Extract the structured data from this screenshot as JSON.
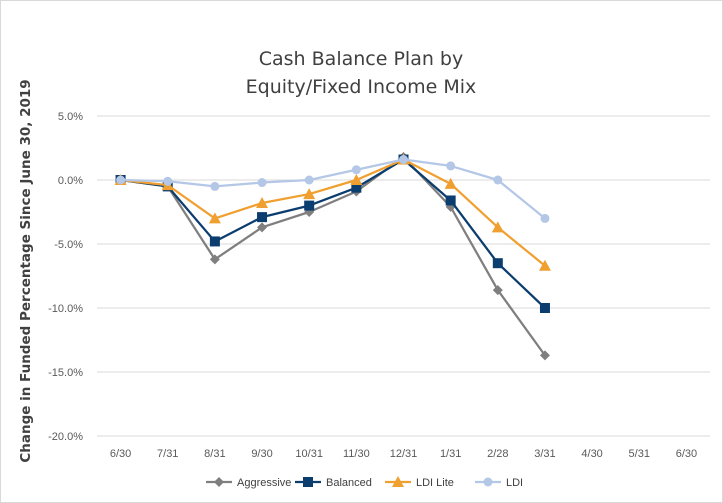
{
  "chart_data": {
    "type": "line",
    "title_lines": [
      "Cash Balance Plan by",
      "Equity/Fixed Income Mix"
    ],
    "xlabel": "",
    "ylabel": "Change in Funded Percentage Since June 30, 2019",
    "categories": [
      "6/30",
      "7/31",
      "8/31",
      "9/30",
      "10/31",
      "11/30",
      "12/31",
      "1/31",
      "2/28",
      "3/31",
      "4/30",
      "5/31",
      "6/30"
    ],
    "ylim": [
      -20.0,
      5.0
    ],
    "yticks": [
      5.0,
      0.0,
      -5.0,
      -10.0,
      -15.0,
      -20.0
    ],
    "ytick_labels": [
      "5.0%",
      "0.0%",
      "-5.0%",
      "-10.0%",
      "-15.0%",
      "-20.0%"
    ],
    "grid": true,
    "legend_position": "bottom",
    "series": [
      {
        "name": "Aggressive",
        "color": "#7f7f7f",
        "marker": "diamond",
        "values": [
          0.0,
          -0.5,
          -6.2,
          -3.7,
          -2.5,
          -0.9,
          1.8,
          -2.1,
          -8.6,
          -13.7,
          null,
          null,
          null
        ]
      },
      {
        "name": "Balanced",
        "color": "#0b3d6e",
        "marker": "square",
        "values": [
          0.0,
          -0.5,
          -4.8,
          -2.9,
          -2.0,
          -0.6,
          1.6,
          -1.6,
          -6.5,
          -10.0,
          null,
          null,
          null
        ]
      },
      {
        "name": "LDI Lite",
        "color": "#f0a030",
        "marker": "triangle",
        "values": [
          0.0,
          -0.4,
          -3.0,
          -1.8,
          -1.1,
          0.0,
          1.6,
          -0.3,
          -3.7,
          -6.7,
          null,
          null,
          null
        ]
      },
      {
        "name": "LDI",
        "color": "#b4c7e7",
        "marker": "circle",
        "values": [
          0.0,
          -0.1,
          -0.5,
          -0.2,
          0.0,
          0.8,
          1.6,
          1.1,
          0.0,
          -3.0,
          null,
          null,
          null
        ]
      }
    ]
  }
}
